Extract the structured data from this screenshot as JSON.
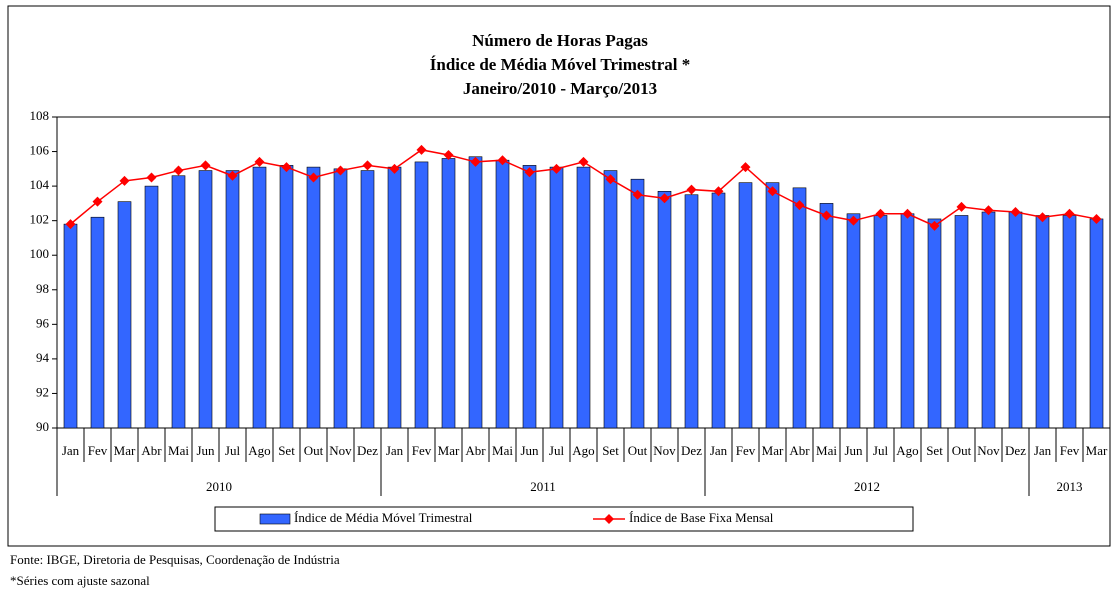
{
  "chart_data": {
    "type": "bar_line",
    "title": [
      "Número de Horas Pagas",
      "Índice de Média Móvel Trimestral *",
      "Janeiro/2010 - Março/2013"
    ],
    "categories": [
      "Jan",
      "Fev",
      "Mar",
      "Abr",
      "Mai",
      "Jun",
      "Jul",
      "Ago",
      "Set",
      "Out",
      "Nov",
      "Dez",
      "Jan",
      "Fev",
      "Mar",
      "Abr",
      "Mai",
      "Jun",
      "Jul",
      "Ago",
      "Set",
      "Out",
      "Nov",
      "Dez",
      "Jan",
      "Fev",
      "Mar",
      "Abr",
      "Mai",
      "Jun",
      "Jul",
      "Ago",
      "Set",
      "Out",
      "Nov",
      "Dez",
      "Jan",
      "Fev",
      "Mar"
    ],
    "year_groups": [
      {
        "label": "2010",
        "count": 12
      },
      {
        "label": "2011",
        "count": 12
      },
      {
        "label": "2012",
        "count": 12
      },
      {
        "label": "2013",
        "count": 3
      }
    ],
    "series": [
      {
        "name": "Índice de Média Móvel Trimestral",
        "kind": "bar",
        "color": "#3366ff",
        "values": [
          101.8,
          102.2,
          103.1,
          104.0,
          104.6,
          104.9,
          104.9,
          105.1,
          105.2,
          105.1,
          105.0,
          104.9,
          105.1,
          105.4,
          105.6,
          105.7,
          105.5,
          105.2,
          105.1,
          105.1,
          104.9,
          104.4,
          103.7,
          103.5,
          103.6,
          104.2,
          104.2,
          103.9,
          103.0,
          102.4,
          102.3,
          102.4,
          102.1,
          102.3,
          102.5,
          102.5,
          102.3,
          102.3,
          102.1
        ]
      },
      {
        "name": "Índice de Base Fixa Mensal",
        "kind": "line",
        "color": "#ff0000",
        "values": [
          101.8,
          103.1,
          104.3,
          104.5,
          104.9,
          105.2,
          104.6,
          105.4,
          105.1,
          104.5,
          104.9,
          105.2,
          105.0,
          106.1,
          105.8,
          105.4,
          105.5,
          104.8,
          105.0,
          105.4,
          104.4,
          103.5,
          103.3,
          103.8,
          103.7,
          105.1,
          103.7,
          102.9,
          102.3,
          102.0,
          102.4,
          102.4,
          101.7,
          102.8,
          102.6,
          102.5,
          102.2,
          102.4,
          102.1
        ]
      }
    ],
    "ylim": [
      90,
      108
    ],
    "yticks": [
      90,
      92,
      94,
      96,
      98,
      100,
      102,
      104,
      106,
      108
    ],
    "legend": "bottom",
    "notes": [
      "Fonte: IBGE, Diretoria de Pesquisas, Coordenação de Indústria",
      "*Séries com ajuste sazonal"
    ]
  }
}
